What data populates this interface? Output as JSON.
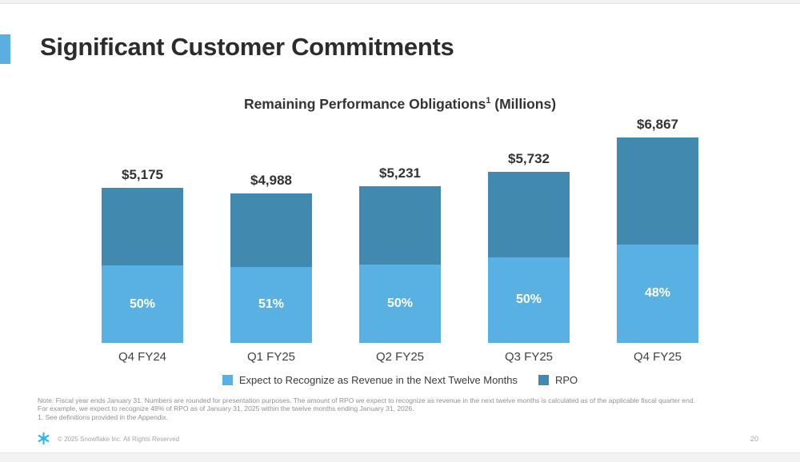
{
  "page": {
    "title": "Significant Customer Commitments",
    "page_number": "20",
    "footer_copyright": "© 2025 Snowflake Inc. All Rights Reserved"
  },
  "colors": {
    "accent_bar": "#5bafe0",
    "segment_light_blue": "#58b0e3",
    "segment_dark_blue": "#4289af",
    "title_text": "#2c2c2c",
    "note_text": "#919191",
    "viewer_background": "#f2f2f3"
  },
  "chart": {
    "title_main": "Remaining Performance Obligations",
    "title_sup": "1",
    "title_tail": " (Millions)"
  },
  "chart_data": {
    "type": "bar",
    "stacked": true,
    "title": "Remaining Performance Obligations¹ (Millions)",
    "categories": [
      "Q4 FY24",
      "Q1 FY25",
      "Q2 FY25",
      "Q3 FY25",
      "Q4 FY25"
    ],
    "totals": [
      5175,
      4988,
      5231,
      5732,
      6867
    ],
    "total_labels": [
      "$5,175",
      "$4,988",
      "$5,231",
      "$5,732",
      "$6,867"
    ],
    "series": [
      {
        "name": "Expect to Recognize as Revenue in the Next Twelve Months",
        "color": "#58b0e3",
        "pct_of_total": [
          50,
          51,
          50,
          50,
          48
        ],
        "pct_labels": [
          "50%",
          "51%",
          "50%",
          "50%",
          "48%"
        ]
      },
      {
        "name": "RPO",
        "color": "#4289af"
      }
    ],
    "ylim": [
      0,
      6867
    ],
    "grid": false,
    "legend_position": "bottom",
    "value_label_style": "total above bar; percentage inside bottom segment"
  },
  "legend": {
    "items": [
      {
        "label": "Expect to Recognize as Revenue in the Next Twelve Months",
        "color": "#58b0e3"
      },
      {
        "label": "RPO",
        "color": "#4289af"
      }
    ]
  },
  "notes": {
    "line1": "Note: Fiscal year ends January 31. Numbers are rounded for presentation purposes. The amount of RPO we expect to recognize as revenue in the next twelve months is calculated as of the applicable fiscal quarter end.",
    "line2": "For example, we expect to recognize 48% of RPO as of January 31, 2025 within the twelve months ending January 31, 2026.",
    "line3": "1.  See definitions provided in the Appendix."
  }
}
